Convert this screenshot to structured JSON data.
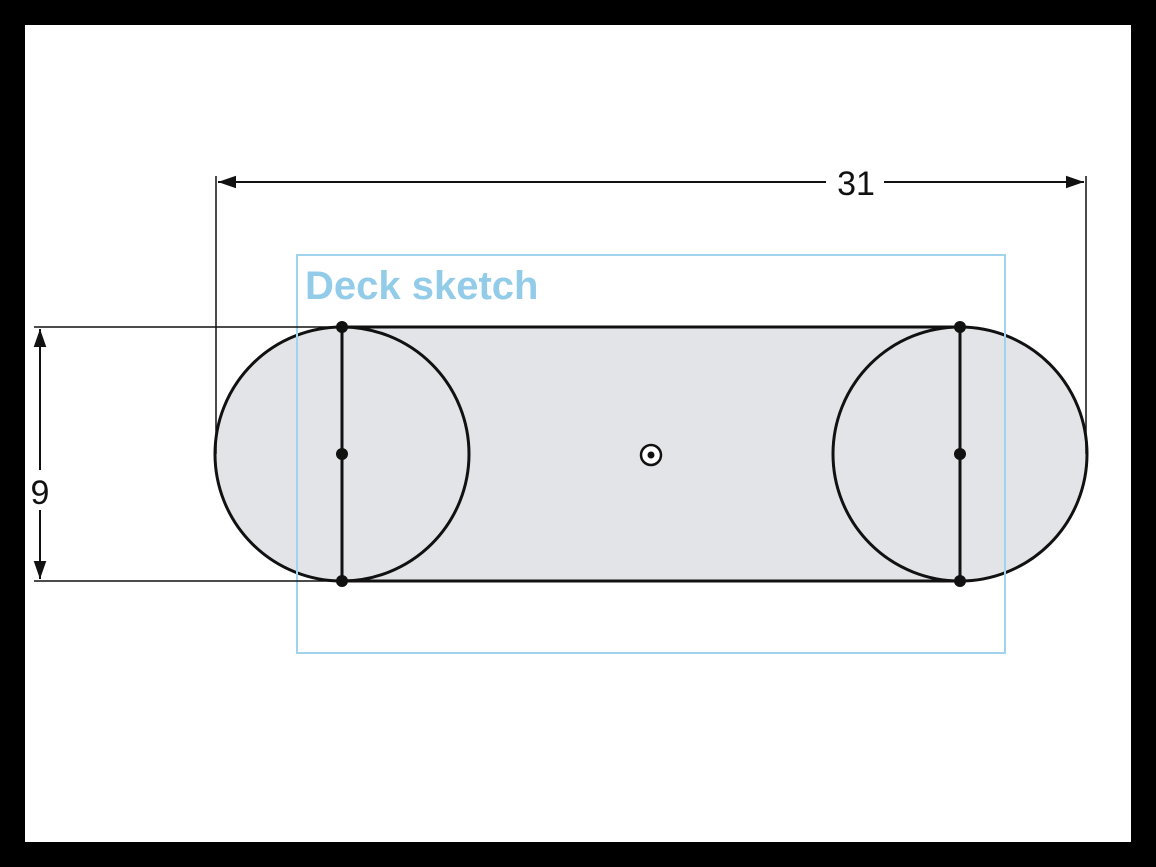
{
  "sketch": {
    "label": "Deck sketch"
  },
  "dimensions": {
    "length": "31",
    "height": "9"
  },
  "colors": {
    "background": "#000000",
    "canvas": "#ffffff",
    "shape_fill": "#e3e4e7",
    "stroke": "#111111",
    "sketch_box": "#9fd3ee",
    "sketch_label": "#93cce9"
  },
  "icons": {
    "origin": "origin-point-icon"
  }
}
